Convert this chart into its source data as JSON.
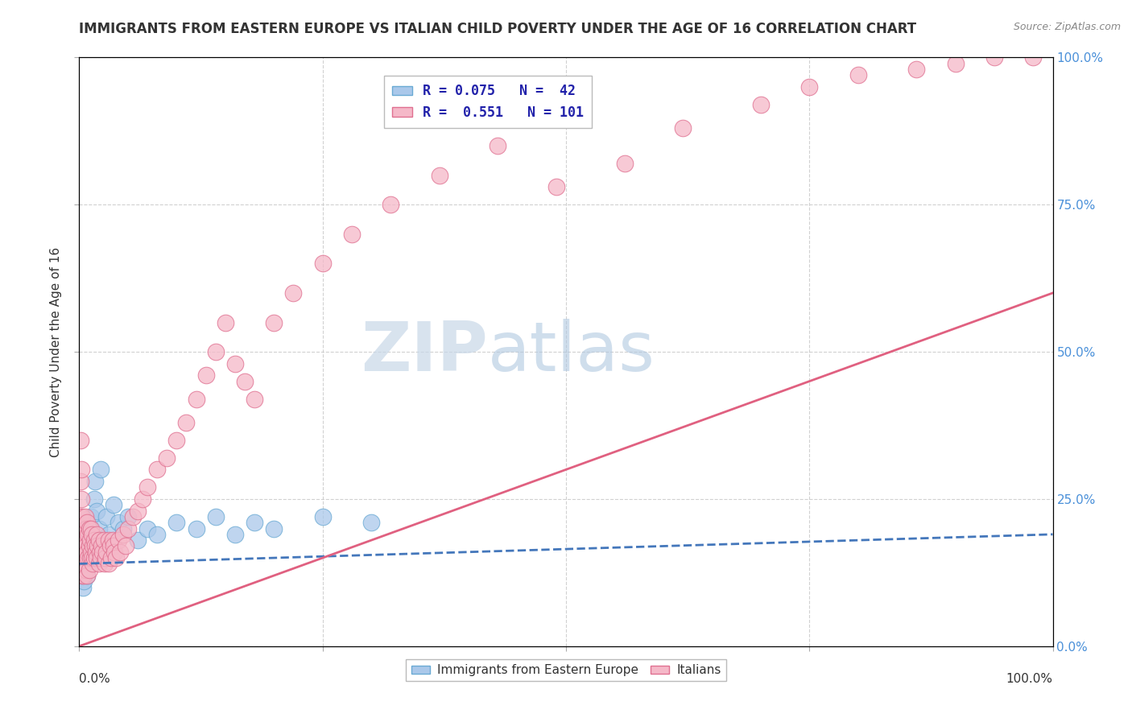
{
  "title": "IMMIGRANTS FROM EASTERN EUROPE VS ITALIAN CHILD POVERTY UNDER THE AGE OF 16 CORRELATION CHART",
  "source": "Source: ZipAtlas.com",
  "ylabel": "Child Poverty Under the Age of 16",
  "series": [
    {
      "name": "Immigrants from Eastern Europe",
      "R": 0.075,
      "N": 42,
      "color_scatter": "#aac8ea",
      "color_edge": "#6aaad4",
      "color_line": "#4477bb",
      "line_style": "dashed",
      "x": [
        0.001,
        0.002,
        0.002,
        0.003,
        0.003,
        0.004,
        0.004,
        0.005,
        0.005,
        0.006,
        0.006,
        0.007,
        0.008,
        0.009,
        0.01,
        0.01,
        0.011,
        0.012,
        0.013,
        0.015,
        0.016,
        0.018,
        0.02,
        0.022,
        0.025,
        0.028,
        0.03,
        0.035,
        0.04,
        0.045,
        0.05,
        0.06,
        0.07,
        0.08,
        0.1,
        0.12,
        0.14,
        0.16,
        0.18,
        0.2,
        0.25,
        0.3
      ],
      "y": [
        0.15,
        0.13,
        0.18,
        0.12,
        0.16,
        0.1,
        0.14,
        0.11,
        0.17,
        0.13,
        0.19,
        0.15,
        0.12,
        0.16,
        0.14,
        0.18,
        0.2,
        0.22,
        0.17,
        0.25,
        0.28,
        0.23,
        0.2,
        0.3,
        0.18,
        0.22,
        0.19,
        0.24,
        0.21,
        0.2,
        0.22,
        0.18,
        0.2,
        0.19,
        0.21,
        0.2,
        0.22,
        0.19,
        0.21,
        0.2,
        0.22,
        0.21
      ]
    },
    {
      "name": "Italians",
      "R": 0.551,
      "N": 101,
      "color_scatter": "#f5b8c8",
      "color_edge": "#e07090",
      "color_line": "#e06080",
      "line_style": "solid",
      "x": [
        0.001,
        0.001,
        0.001,
        0.002,
        0.002,
        0.002,
        0.002,
        0.003,
        0.003,
        0.003,
        0.003,
        0.004,
        0.004,
        0.004,
        0.005,
        0.005,
        0.005,
        0.006,
        0.006,
        0.006,
        0.007,
        0.007,
        0.007,
        0.008,
        0.008,
        0.008,
        0.009,
        0.009,
        0.01,
        0.01,
        0.01,
        0.011,
        0.011,
        0.012,
        0.012,
        0.013,
        0.013,
        0.014,
        0.014,
        0.015,
        0.015,
        0.016,
        0.017,
        0.018,
        0.018,
        0.019,
        0.02,
        0.02,
        0.021,
        0.022,
        0.023,
        0.024,
        0.025,
        0.026,
        0.027,
        0.028,
        0.03,
        0.03,
        0.032,
        0.033,
        0.034,
        0.035,
        0.036,
        0.038,
        0.04,
        0.042,
        0.045,
        0.048,
        0.05,
        0.055,
        0.06,
        0.065,
        0.07,
        0.08,
        0.09,
        0.1,
        0.11,
        0.12,
        0.13,
        0.14,
        0.15,
        0.16,
        0.17,
        0.18,
        0.2,
        0.22,
        0.25,
        0.28,
        0.32,
        0.37,
        0.43,
        0.49,
        0.56,
        0.62,
        0.7,
        0.75,
        0.8,
        0.86,
        0.9,
        0.94,
        0.98
      ],
      "y": [
        0.35,
        0.28,
        0.22,
        0.3,
        0.25,
        0.2,
        0.15,
        0.22,
        0.18,
        0.14,
        0.12,
        0.2,
        0.17,
        0.13,
        0.19,
        0.16,
        0.12,
        0.22,
        0.18,
        0.14,
        0.2,
        0.17,
        0.13,
        0.21,
        0.16,
        0.12,
        0.19,
        0.15,
        0.2,
        0.17,
        0.13,
        0.18,
        0.15,
        0.2,
        0.16,
        0.19,
        0.15,
        0.17,
        0.14,
        0.18,
        0.15,
        0.17,
        0.16,
        0.19,
        0.15,
        0.17,
        0.18,
        0.14,
        0.16,
        0.15,
        0.17,
        0.16,
        0.18,
        0.14,
        0.15,
        0.16,
        0.18,
        0.14,
        0.17,
        0.15,
        0.18,
        0.17,
        0.16,
        0.15,
        0.18,
        0.16,
        0.19,
        0.17,
        0.2,
        0.22,
        0.23,
        0.25,
        0.27,
        0.3,
        0.32,
        0.35,
        0.38,
        0.42,
        0.46,
        0.5,
        0.55,
        0.48,
        0.45,
        0.42,
        0.55,
        0.6,
        0.65,
        0.7,
        0.75,
        0.8,
        0.85,
        0.78,
        0.82,
        0.88,
        0.92,
        0.95,
        0.97,
        0.98,
        0.99,
        1.0,
        1.0
      ]
    }
  ],
  "watermark_zip": "ZIP",
  "watermark_atlas": "atlas",
  "background_color": "#ffffff",
  "grid_color": "#cccccc",
  "title_color": "#333333",
  "source_color": "#888888",
  "legend_color": "#2222aa",
  "right_tick_color": "#4a90d9",
  "xlim": [
    0.0,
    1.0
  ],
  "ylim": [
    0.0,
    1.0
  ],
  "line_intercept_blue": [
    0.14,
    0.19
  ],
  "line_intercept_pink": [
    0.0,
    0.6
  ]
}
